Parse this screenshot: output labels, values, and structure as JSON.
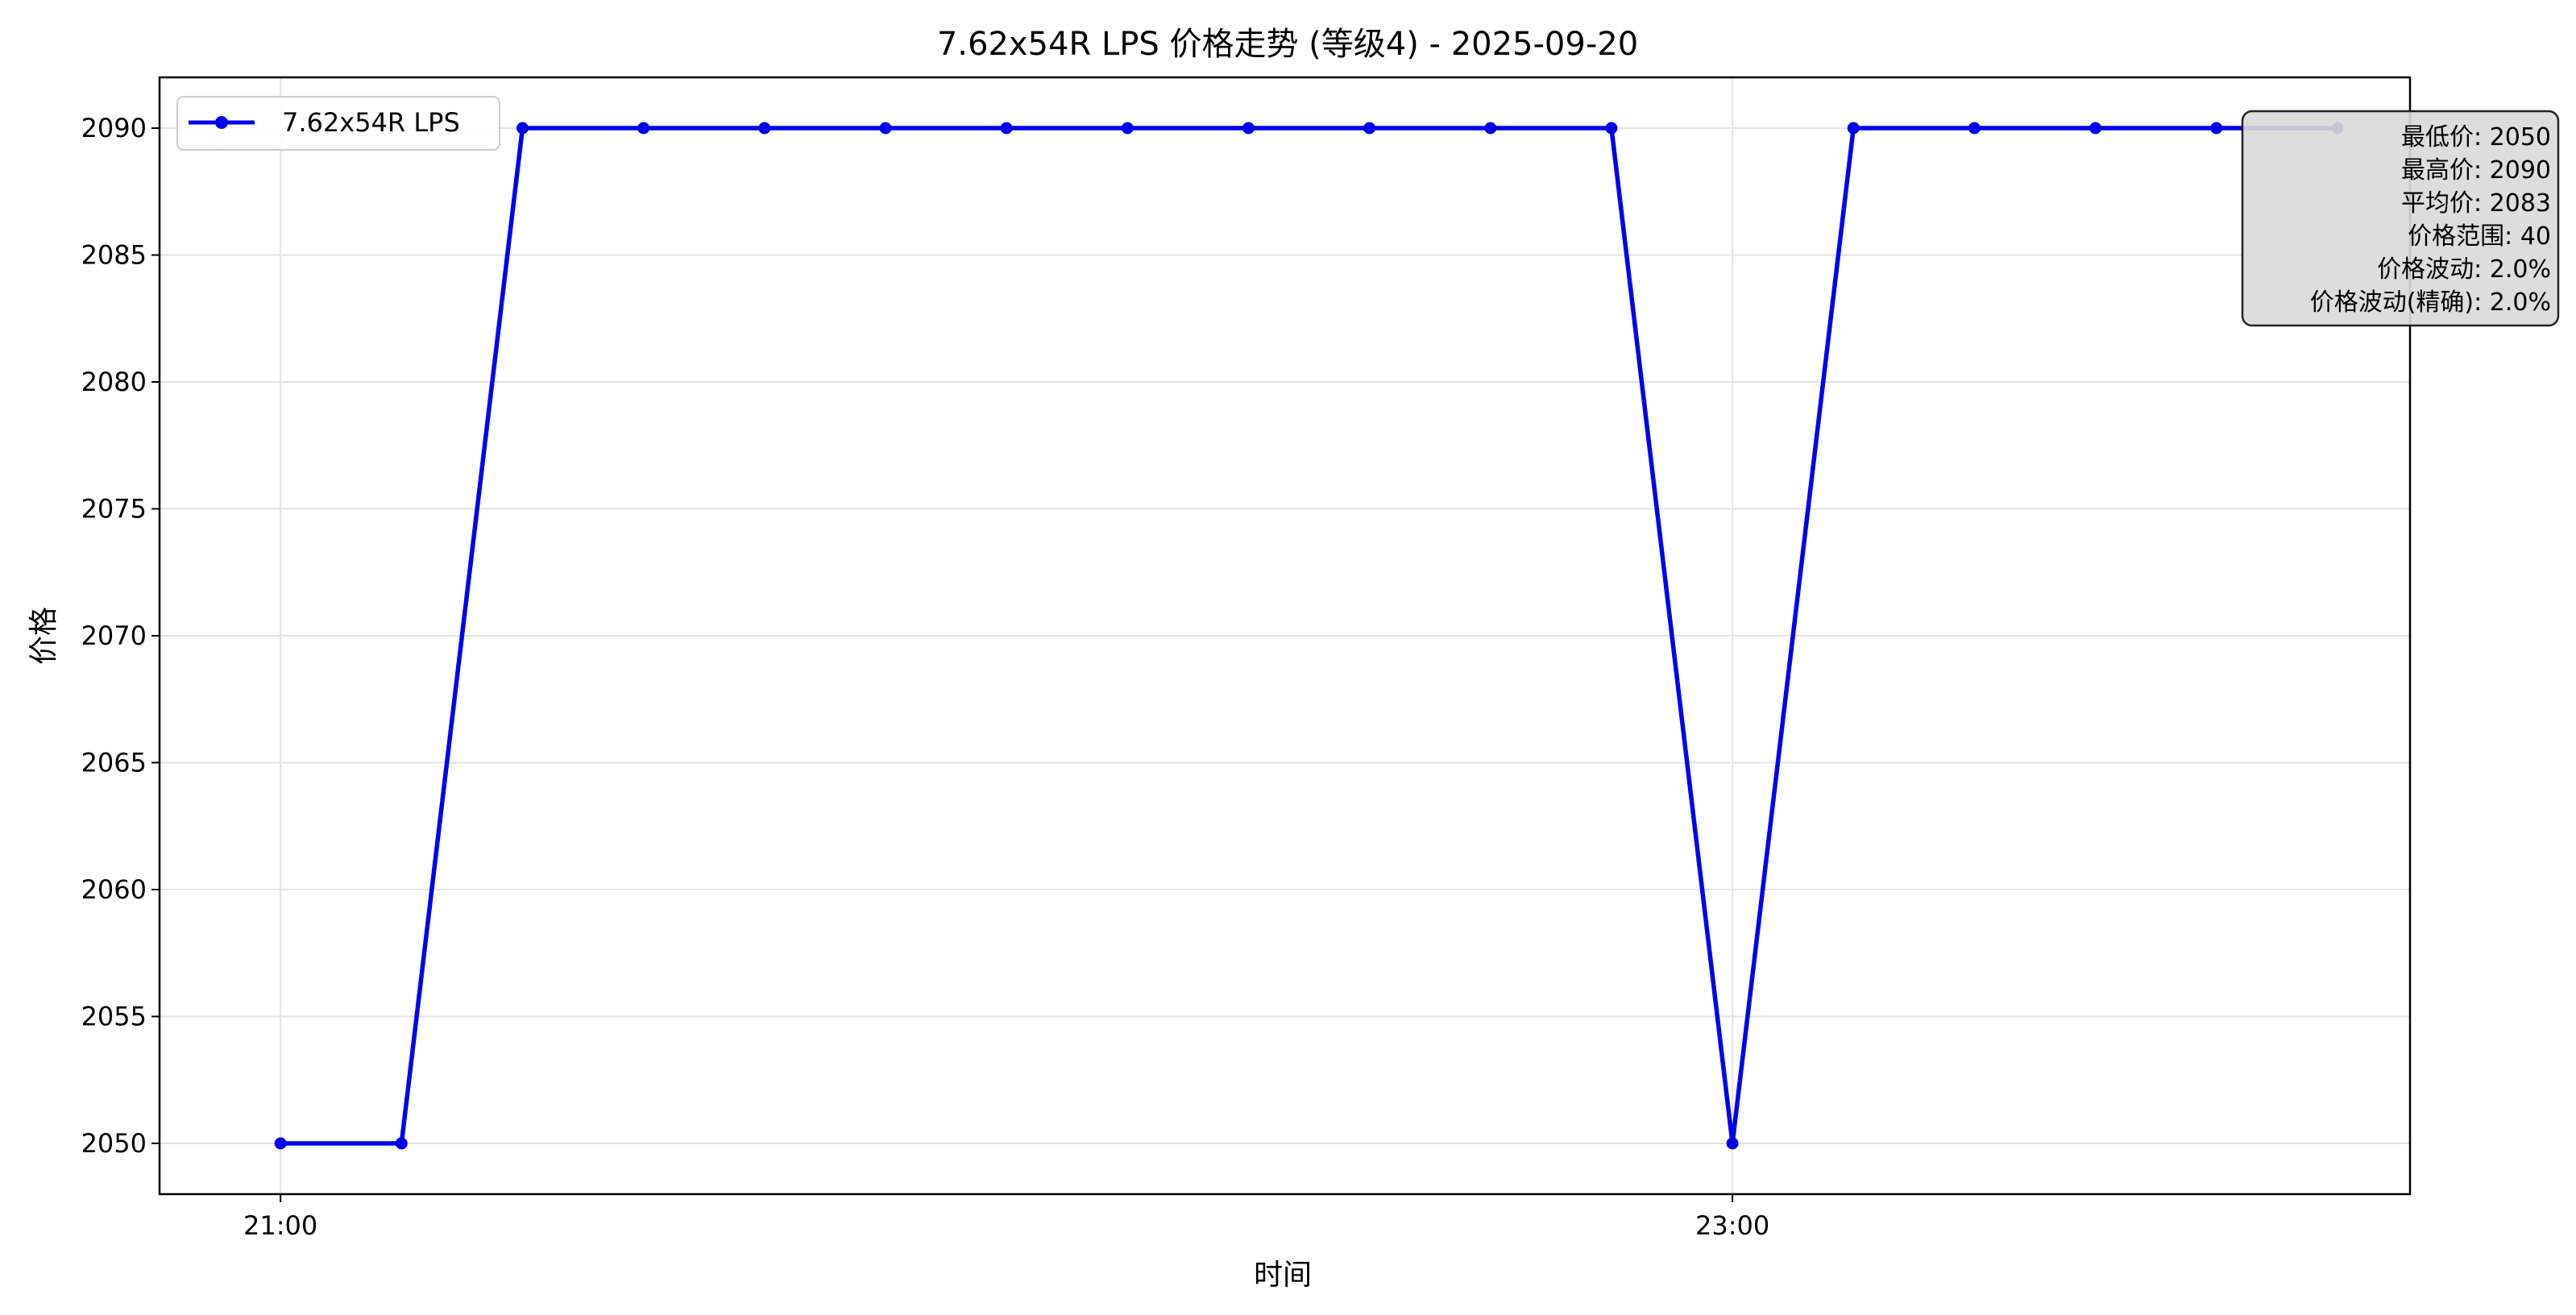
{
  "chart_data": {
    "type": "line",
    "title": "7.62x54R LPS 价格走势 (等级4) - 2025-09-20",
    "xlabel": "时间",
    "ylabel": "价格",
    "x_ticks": [
      "21:00",
      "23:00"
    ],
    "x_tick_minutes": [
      0,
      120
    ],
    "x_range_minutes": [
      -10,
      176
    ],
    "ylim": [
      2048,
      2092
    ],
    "y_ticks": [
      2050,
      2055,
      2060,
      2065,
      2070,
      2075,
      2080,
      2085,
      2090
    ],
    "grid": true,
    "legend_position": "top-left",
    "series": [
      {
        "name": "7.62x54R LPS",
        "color": "#0000ee",
        "marker": "circle",
        "x_minutes": [
          0,
          10,
          20,
          30,
          40,
          50,
          60,
          70,
          80,
          90,
          100,
          110,
          120,
          130,
          140,
          150,
          160,
          170
        ],
        "values": [
          2050,
          2050,
          2090,
          2090,
          2090,
          2090,
          2090,
          2090,
          2090,
          2090,
          2090,
          2090,
          2050,
          2090,
          2090,
          2090,
          2090,
          2090
        ]
      }
    ],
    "stats_box": {
      "lines": [
        "最低价: 2050",
        "最高价: 2090",
        "平均价: 2083",
        "价格范围: 40",
        "价格波动: 2.0%",
        "价格波动(精确): 2.0%"
      ],
      "background": "#d9d9d9"
    }
  }
}
